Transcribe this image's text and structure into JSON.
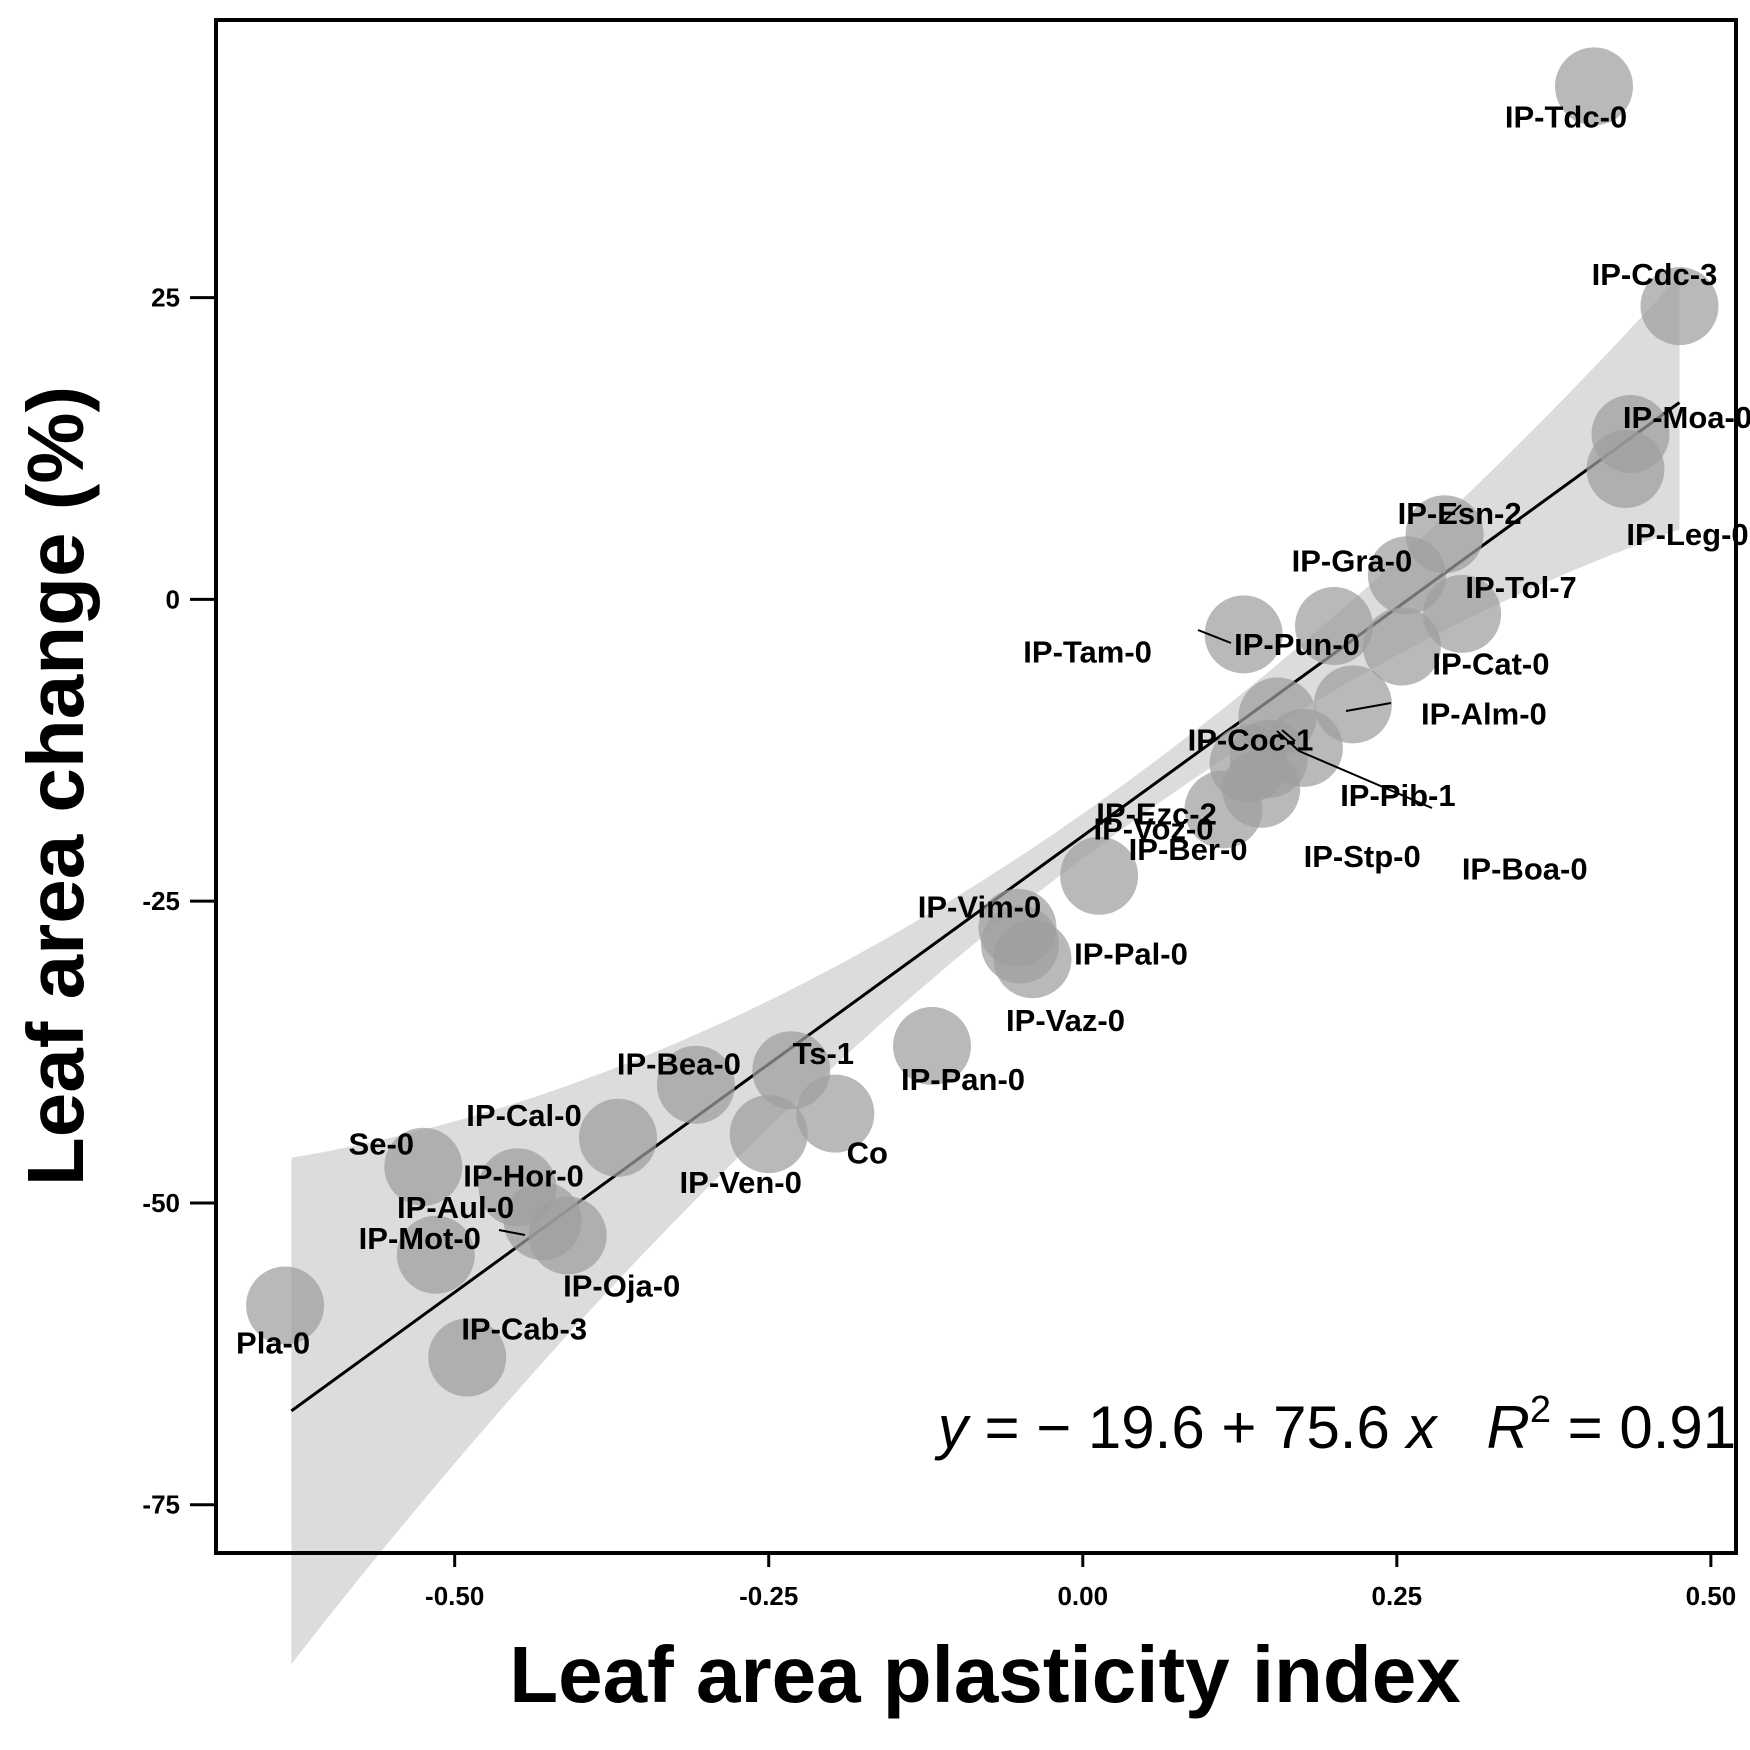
{
  "chart_data": {
    "type": "scatter",
    "xlabel": "Leaf area plasticity index",
    "ylabel": "Leaf area change (%)",
    "xlim": [
      -0.69,
      0.52
    ],
    "ylim": [
      -79,
      48
    ],
    "xticks": [
      -0.5,
      -0.25,
      0.0,
      0.25,
      0.5
    ],
    "xtick_labels": [
      "-0.50",
      "-0.25",
      "0.00",
      "0.25",
      "0.50"
    ],
    "yticks": [
      -75,
      -50,
      -25,
      0,
      25
    ],
    "ytick_labels": [
      "-75",
      "-50",
      "-25",
      "0",
      "25"
    ],
    "grid": false,
    "point_color": "#9e9e9e",
    "band_color": "#dcdcdc",
    "points": [
      {
        "name": "IP-Tdc-0",
        "x": 0.407,
        "y": 42.5
      },
      {
        "name": "IP-Cdc-3",
        "x": 0.475,
        "y": 24.3
      },
      {
        "name": "IP-Moa-0",
        "x": 0.436,
        "y": 13.7
      },
      {
        "name": "IP-Leg-0",
        "x": 0.432,
        "y": 10.8
      },
      {
        "name": "IP-Esn-2",
        "x": 0.288,
        "y": 5.4
      },
      {
        "name": "IP-Gra-0",
        "x": 0.258,
        "y": 2.0
      },
      {
        "name": "IP-Tol-7",
        "x": 0.302,
        "y": -1.2
      },
      {
        "name": "IP-Pun-0",
        "x": 0.2,
        "y": -2.2
      },
      {
        "name": "IP-Tam-0",
        "x": 0.128,
        "y": -2.9
      },
      {
        "name": "IP-Cat-0",
        "x": 0.254,
        "y": -3.9
      },
      {
        "name": "IP-Alm-0",
        "x": 0.215,
        "y": -8.7
      },
      {
        "name": "IP-Coc-1",
        "x": 0.155,
        "y": -9.7
      },
      {
        "name": "IP-Pib-1",
        "x": 0.176,
        "y": -12.3
      },
      {
        "name": "IP-Boa-0",
        "x": 0.148,
        "y": -13.2
      },
      {
        "name": "IP-Ezc-2",
        "x": 0.132,
        "y": -13.6
      },
      {
        "name": "IP-Stp-0",
        "x": 0.142,
        "y": -15.7
      },
      {
        "name": "IP-Voz-0",
        "x": 0.112,
        "y": -17.4
      },
      {
        "name": "IP-Ber-0",
        "x": 0.013,
        "y": -22.9
      },
      {
        "name": "IP-Vim-0",
        "x": -0.052,
        "y": -27.2
      },
      {
        "name": "IP-Pal-0",
        "x": -0.05,
        "y": -28.6
      },
      {
        "name": "IP-Vaz-0",
        "x": -0.04,
        "y": -29.8
      },
      {
        "name": "IP-Pan-0",
        "x": -0.12,
        "y": -37.0
      },
      {
        "name": "IP-Bea-0",
        "x": -0.308,
        "y": -40.2
      },
      {
        "name": "Ts-1",
        "x": -0.232,
        "y": -39.0
      },
      {
        "name": "Co",
        "x": -0.197,
        "y": -42.6
      },
      {
        "name": "IP-Ven-0",
        "x": -0.25,
        "y": -44.3
      },
      {
        "name": "IP-Cal-0",
        "x": -0.37,
        "y": -44.6
      },
      {
        "name": "Se-0",
        "x": -0.525,
        "y": -47.0
      },
      {
        "name": "IP-Hor-0",
        "x": -0.45,
        "y": -48.7
      },
      {
        "name": "IP-Aul-0",
        "x": -0.43,
        "y": -51.5
      },
      {
        "name": "IP-Oja-0",
        "x": -0.41,
        "y": -52.7
      },
      {
        "name": "IP-Mot-0",
        "x": -0.515,
        "y": -54.3
      },
      {
        "name": "Pla-0",
        "x": -0.635,
        "y": -58.5
      },
      {
        "name": "IP-Cab-3",
        "x": -0.49,
        "y": -62.8
      }
    ],
    "fit": {
      "intercept": -19.6,
      "slope": 75.6,
      "r2": 0.91,
      "x_range": [
        -0.63,
        0.475
      ]
    },
    "equation": {
      "lhs": "y",
      "eq": " = ",
      "rhs": "− 19.6 + 75.6 ",
      "x": "x",
      "r": "R",
      "sup": "2",
      "rest": " = 0.91"
    }
  }
}
